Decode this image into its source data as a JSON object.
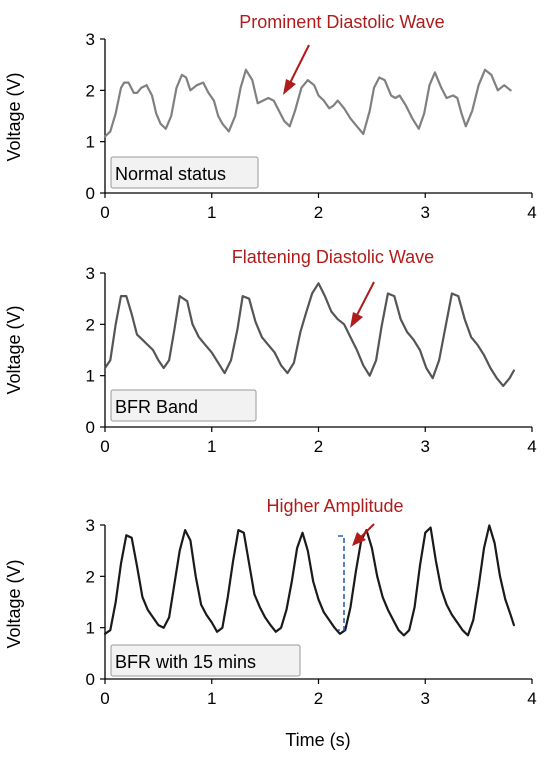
{
  "colors": {
    "annotation": "#b01c1c",
    "bracket": "#2f5fb5",
    "status_box_fill": "#f2f2f2",
    "status_box_stroke": "#9a9a9a"
  },
  "chart_data": [
    {
      "type": "line",
      "ylabel": "Voltage (V)",
      "xlim": [
        0,
        4
      ],
      "ylim": [
        0,
        3
      ],
      "xticks": [
        0,
        1,
        2,
        3,
        4
      ],
      "yticks": [
        0,
        1,
        2,
        3
      ],
      "grid": false,
      "status_label": "Normal status",
      "annotation": {
        "text": "Prominent Diastolic Wave",
        "x": 1.65,
        "y": 1.8
      },
      "series": [
        {
          "color": "#808080",
          "x": [
            0.0,
            0.05,
            0.1,
            0.15,
            0.18,
            0.22,
            0.27,
            0.3,
            0.34,
            0.39,
            0.44,
            0.48,
            0.52,
            0.57,
            0.62,
            0.67,
            0.72,
            0.76,
            0.8,
            0.86,
            0.92,
            0.97,
            1.02,
            1.06,
            1.1,
            1.16,
            1.22,
            1.27,
            1.32,
            1.38,
            1.43,
            1.48,
            1.53,
            1.58,
            1.63,
            1.68,
            1.73,
            1.78,
            1.84,
            1.9,
            1.96,
            2.0,
            2.05,
            2.1,
            2.14,
            2.18,
            2.24,
            2.3,
            2.36,
            2.42,
            2.48,
            2.52,
            2.57,
            2.62,
            2.68,
            2.72,
            2.76,
            2.82,
            2.88,
            2.94,
            2.99,
            3.04,
            3.09,
            3.15,
            3.2,
            3.26,
            3.3,
            3.34,
            3.38,
            3.44,
            3.5,
            3.56,
            3.62,
            3.68,
            3.74,
            3.8
          ],
          "y": [
            1.1,
            1.2,
            1.55,
            2.05,
            2.15,
            2.15,
            1.95,
            1.95,
            2.05,
            2.1,
            1.9,
            1.55,
            1.35,
            1.25,
            1.5,
            2.05,
            2.3,
            2.25,
            2.0,
            2.1,
            2.15,
            1.95,
            1.8,
            1.5,
            1.35,
            1.2,
            1.5,
            2.05,
            2.4,
            2.2,
            1.75,
            1.8,
            1.85,
            1.8,
            1.6,
            1.4,
            1.3,
            1.6,
            2.05,
            2.2,
            2.1,
            1.9,
            1.8,
            1.65,
            1.7,
            1.8,
            1.65,
            1.45,
            1.3,
            1.15,
            1.6,
            2.05,
            2.25,
            2.2,
            1.9,
            1.85,
            1.9,
            1.7,
            1.45,
            1.25,
            1.55,
            2.1,
            2.35,
            2.05,
            1.85,
            1.9,
            1.85,
            1.55,
            1.3,
            1.6,
            2.1,
            2.4,
            2.3,
            2.0,
            2.1,
            2.0
          ]
        }
      ]
    },
    {
      "type": "line",
      "ylabel": "Voltage (V)",
      "xlim": [
        0,
        4
      ],
      "ylim": [
        0,
        3
      ],
      "xticks": [
        0,
        1,
        2,
        3,
        4
      ],
      "yticks": [
        0,
        1,
        2,
        3
      ],
      "grid": false,
      "status_label": "BFR Band",
      "annotation": {
        "text": "Flattening Diastolic Wave",
        "x": 2.3,
        "y": 1.95
      },
      "series": [
        {
          "color": "#555555",
          "x": [
            0.0,
            0.05,
            0.1,
            0.15,
            0.2,
            0.25,
            0.3,
            0.35,
            0.4,
            0.45,
            0.5,
            0.55,
            0.6,
            0.65,
            0.7,
            0.77,
            0.82,
            0.88,
            0.94,
            1.0,
            1.06,
            1.12,
            1.18,
            1.24,
            1.29,
            1.35,
            1.41,
            1.47,
            1.53,
            1.59,
            1.65,
            1.71,
            1.77,
            1.83,
            1.88,
            1.94,
            2.0,
            2.06,
            2.12,
            2.18,
            2.24,
            2.3,
            2.36,
            2.42,
            2.48,
            2.54,
            2.59,
            2.65,
            2.71,
            2.77,
            2.83,
            2.89,
            2.95,
            3.01,
            3.07,
            3.13,
            3.19,
            3.25,
            3.31,
            3.37,
            3.43,
            3.49,
            3.55,
            3.61,
            3.67,
            3.73,
            3.79,
            3.83
          ],
          "y": [
            1.15,
            1.3,
            2.0,
            2.55,
            2.55,
            2.2,
            1.8,
            1.7,
            1.6,
            1.5,
            1.3,
            1.15,
            1.3,
            1.9,
            2.55,
            2.45,
            2.0,
            1.75,
            1.6,
            1.45,
            1.25,
            1.05,
            1.3,
            1.9,
            2.55,
            2.5,
            2.05,
            1.75,
            1.6,
            1.45,
            1.2,
            1.05,
            1.25,
            1.85,
            2.2,
            2.6,
            2.8,
            2.55,
            2.25,
            2.1,
            2.0,
            1.75,
            1.5,
            1.2,
            1.0,
            1.3,
            1.95,
            2.6,
            2.55,
            2.1,
            1.85,
            1.7,
            1.5,
            1.15,
            0.95,
            1.3,
            1.95,
            2.6,
            2.55,
            2.1,
            1.75,
            1.6,
            1.4,
            1.15,
            0.95,
            0.8,
            0.95,
            1.1
          ]
        }
      ]
    },
    {
      "type": "line",
      "ylabel": "Voltage (V)",
      "xlabel": "Time (s)",
      "xlim": [
        0,
        4
      ],
      "ylim": [
        0,
        3
      ],
      "xticks": [
        0,
        1,
        2,
        3,
        4
      ],
      "yticks": [
        0,
        1,
        2,
        3
      ],
      "grid": false,
      "status_label": "BFR with 15 mins",
      "annotation": {
        "text": "Higher Amplitude",
        "x": 2.32,
        "y": 2.7
      },
      "series": [
        {
          "color": "#1a1a1a",
          "x": [
            0.0,
            0.05,
            0.1,
            0.15,
            0.2,
            0.25,
            0.3,
            0.35,
            0.4,
            0.45,
            0.5,
            0.55,
            0.6,
            0.65,
            0.7,
            0.75,
            0.8,
            0.85,
            0.9,
            0.95,
            1.0,
            1.05,
            1.1,
            1.15,
            1.2,
            1.25,
            1.3,
            1.35,
            1.4,
            1.45,
            1.5,
            1.55,
            1.6,
            1.65,
            1.7,
            1.75,
            1.8,
            1.85,
            1.9,
            1.95,
            2.0,
            2.05,
            2.1,
            2.15,
            2.2,
            2.25,
            2.3,
            2.35,
            2.4,
            2.45,
            2.5,
            2.55,
            2.6,
            2.65,
            2.7,
            2.75,
            2.8,
            2.85,
            2.9,
            2.95,
            3.0,
            3.05,
            3.1,
            3.15,
            3.2,
            3.25,
            3.3,
            3.35,
            3.4,
            3.45,
            3.5,
            3.55,
            3.6,
            3.65,
            3.7,
            3.75,
            3.8,
            3.83
          ],
          "y": [
            0.88,
            0.95,
            1.5,
            2.25,
            2.8,
            2.75,
            2.2,
            1.6,
            1.35,
            1.2,
            1.05,
            1.0,
            1.2,
            1.85,
            2.5,
            2.9,
            2.7,
            2.0,
            1.45,
            1.25,
            1.1,
            0.92,
            1.0,
            1.6,
            2.3,
            2.9,
            2.85,
            2.25,
            1.65,
            1.4,
            1.2,
            1.05,
            0.92,
            1.0,
            1.35,
            1.9,
            2.55,
            2.85,
            2.5,
            1.9,
            1.55,
            1.3,
            1.15,
            1.0,
            0.88,
            0.95,
            1.4,
            2.1,
            2.7,
            2.9,
            2.55,
            2.0,
            1.6,
            1.35,
            1.15,
            0.95,
            0.85,
            0.95,
            1.4,
            2.2,
            2.85,
            2.95,
            2.3,
            1.75,
            1.45,
            1.25,
            1.1,
            0.95,
            0.85,
            1.15,
            1.8,
            2.55,
            2.99,
            2.65,
            2.0,
            1.55,
            1.25,
            1.05
          ]
        }
      ]
    }
  ]
}
